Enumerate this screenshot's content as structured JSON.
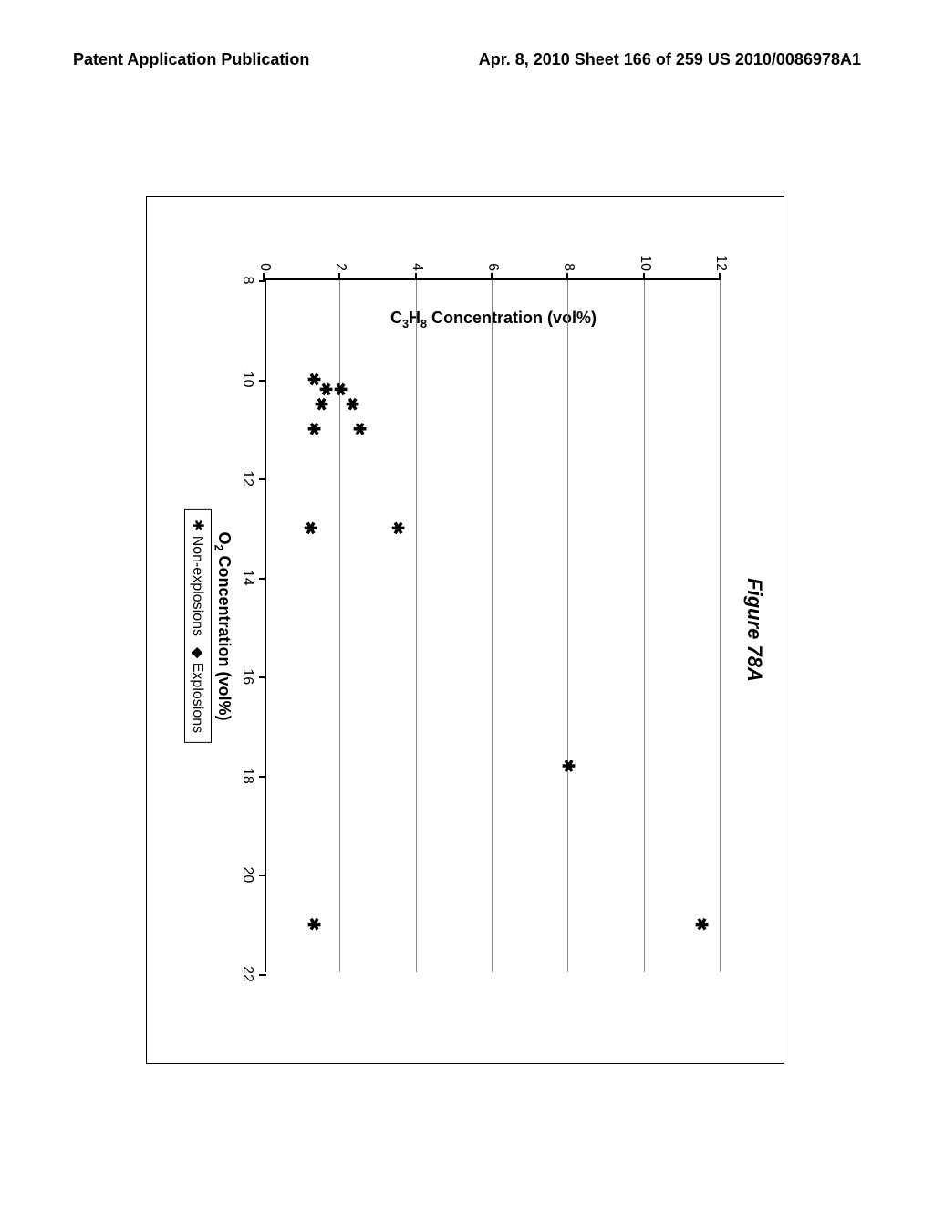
{
  "header": {
    "left": "Patent Application Publication",
    "right": "Apr. 8, 2010  Sheet 166 of 259  US 2010/0086978A1"
  },
  "chart": {
    "title": "Figure 78A",
    "type": "scatter",
    "x_axis_title": "O₂ Concentration (vol%)",
    "y_axis_title": "C₃H₈ Concentration (vol%)",
    "xlim": [
      8,
      22
    ],
    "ylim": [
      0,
      12
    ],
    "xtick_step": 2,
    "ytick_step": 2,
    "xticks": [
      8,
      10,
      12,
      14,
      16,
      18,
      20,
      22
    ],
    "yticks": [
      0,
      2,
      4,
      6,
      8,
      10,
      12
    ],
    "background_color": "#ffffff",
    "grid_color": "#888888",
    "marker_color": "#000000",
    "marker_style": "asterisk",
    "marker_size": 18,
    "legend": {
      "items": [
        {
          "symbol": "✱",
          "label": "Non-explosions"
        },
        {
          "symbol": "◆",
          "label": "Explosions"
        }
      ]
    },
    "points_nonexplosion": [
      {
        "x": 10.0,
        "y": 1.3
      },
      {
        "x": 10.2,
        "y": 2.0
      },
      {
        "x": 10.2,
        "y": 1.6
      },
      {
        "x": 10.5,
        "y": 1.5
      },
      {
        "x": 10.5,
        "y": 2.3
      },
      {
        "x": 11.0,
        "y": 1.3
      },
      {
        "x": 11.0,
        "y": 2.5
      },
      {
        "x": 13.0,
        "y": 1.2
      },
      {
        "x": 13.0,
        "y": 3.5
      },
      {
        "x": 17.8,
        "y": 8.0
      },
      {
        "x": 21.0,
        "y": 1.3
      },
      {
        "x": 21.0,
        "y": 11.5
      }
    ]
  }
}
